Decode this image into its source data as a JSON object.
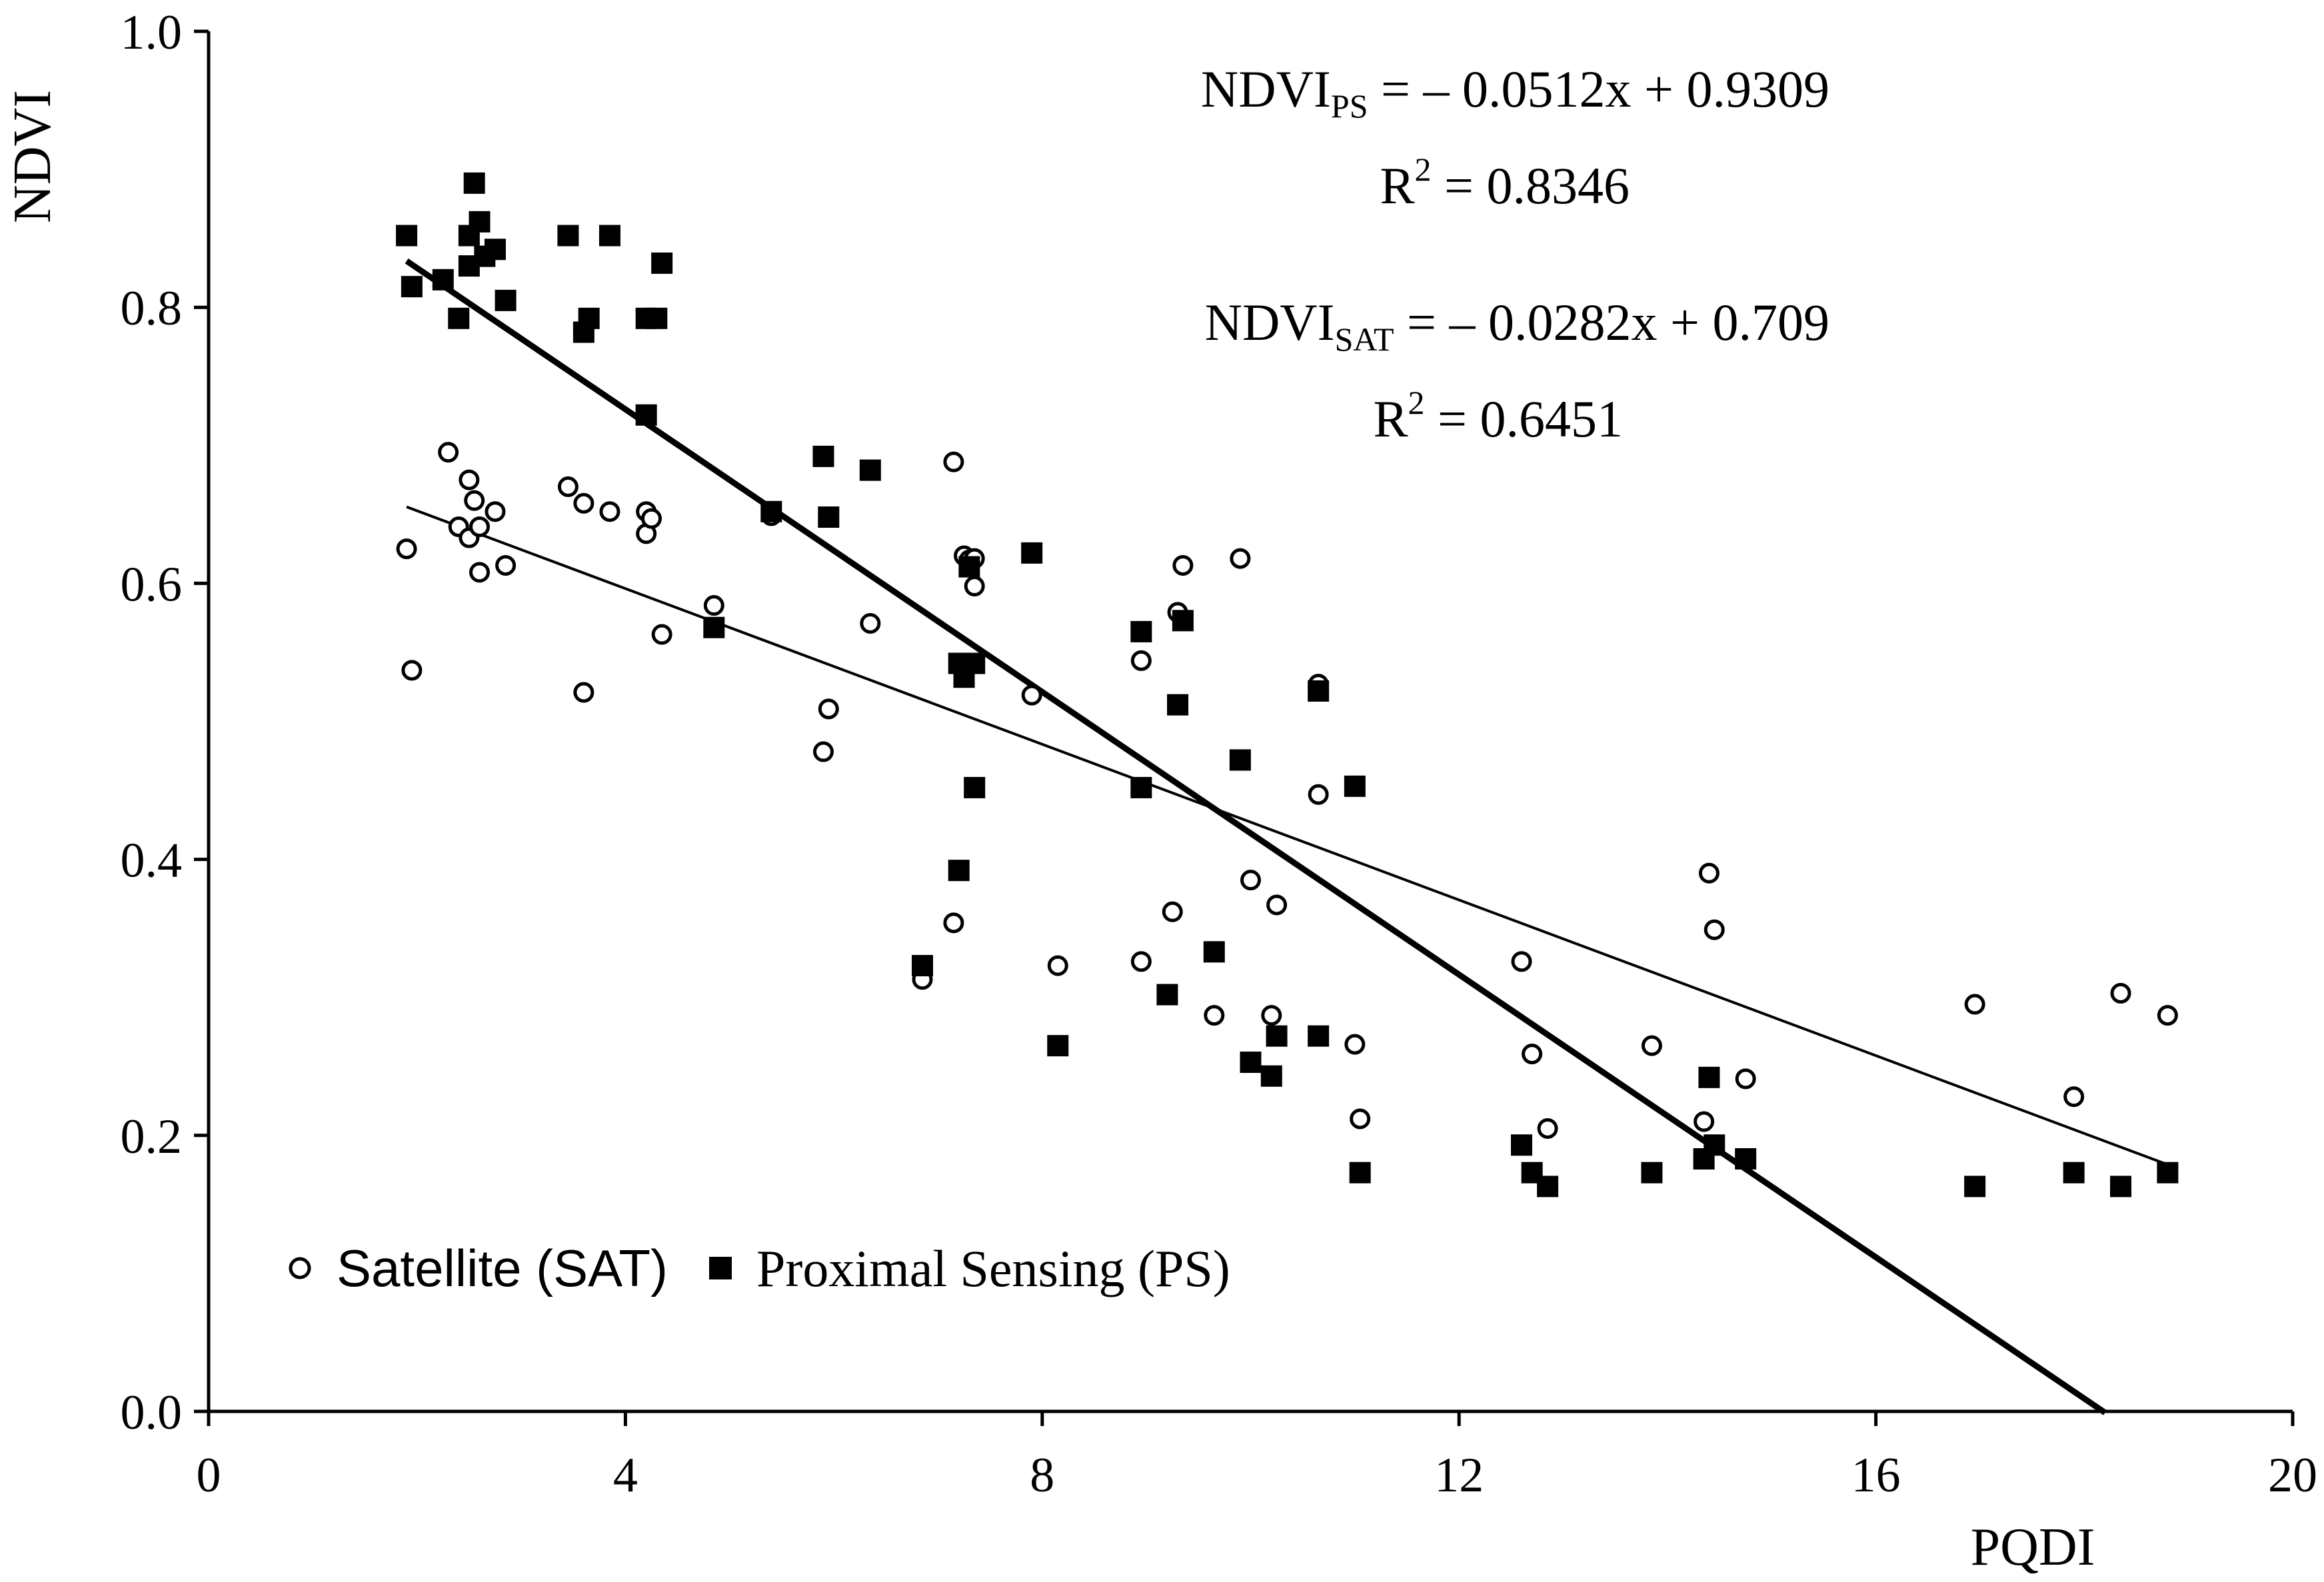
{
  "chart_data": {
    "type": "scatter",
    "title": "",
    "xlabel": "PQDI",
    "ylabel": "NDVI",
    "xlim": [
      0,
      20
    ],
    "ylim": [
      0.0,
      1.0
    ],
    "x_ticks": [
      "0",
      "4",
      "8",
      "12",
      "16",
      "20"
    ],
    "y_ticks": [
      "0.0",
      "0.2",
      "0.4",
      "0.6",
      "0.8",
      "1.0"
    ],
    "grid": false,
    "legend_position": "bottom-left",
    "series": [
      {
        "name": "Satellite (SAT)",
        "marker": "open-circle",
        "points": [
          [
            1.9,
            0.625
          ],
          [
            1.95,
            0.537
          ],
          [
            2.3,
            0.695
          ],
          [
            2.4,
            0.641
          ],
          [
            2.5,
            0.675
          ],
          [
            2.5,
            0.633
          ],
          [
            2.55,
            0.66
          ],
          [
            2.6,
            0.641
          ],
          [
            2.6,
            0.608
          ],
          [
            2.75,
            0.652
          ],
          [
            2.85,
            0.613
          ],
          [
            3.45,
            0.67
          ],
          [
            3.6,
            0.658
          ],
          [
            3.6,
            0.521
          ],
          [
            3.85,
            0.652
          ],
          [
            4.2,
            0.652
          ],
          [
            4.2,
            0.636
          ],
          [
            4.25,
            0.647
          ],
          [
            4.35,
            0.563
          ],
          [
            4.85,
            0.584
          ],
          [
            5.4,
            0.649
          ],
          [
            5.9,
            0.478
          ],
          [
            5.95,
            0.509
          ],
          [
            6.35,
            0.571
          ],
          [
            6.85,
            0.313
          ],
          [
            7.15,
            0.688
          ],
          [
            7.15,
            0.354
          ],
          [
            7.25,
            0.62
          ],
          [
            7.3,
            0.617
          ],
          [
            7.35,
            0.618
          ],
          [
            7.35,
            0.598
          ],
          [
            7.9,
            0.519
          ],
          [
            8.15,
            0.323
          ],
          [
            8.95,
            0.326
          ],
          [
            8.95,
            0.544
          ],
          [
            9.25,
            0.362
          ],
          [
            9.3,
            0.579
          ],
          [
            9.35,
            0.613
          ],
          [
            9.65,
            0.287
          ],
          [
            9.9,
            0.618
          ],
          [
            10.0,
            0.385
          ],
          [
            10.2,
            0.287
          ],
          [
            10.25,
            0.367
          ],
          [
            10.65,
            0.527
          ],
          [
            10.65,
            0.447
          ],
          [
            11.0,
            0.266
          ],
          [
            11.05,
            0.212
          ],
          [
            12.6,
            0.326
          ],
          [
            12.7,
            0.259
          ],
          [
            12.85,
            0.205
          ],
          [
            13.85,
            0.265
          ],
          [
            14.35,
            0.21
          ],
          [
            14.4,
            0.39
          ],
          [
            14.45,
            0.349
          ],
          [
            14.75,
            0.241
          ],
          [
            16.95,
            0.295
          ],
          [
            17.9,
            0.228
          ],
          [
            18.35,
            0.303
          ],
          [
            18.8,
            0.287
          ]
        ]
      },
      {
        "name": "Proximal Sensing (PS)",
        "marker": "filled-square",
        "points": [
          [
            1.9,
            0.852
          ],
          [
            1.95,
            0.815
          ],
          [
            2.25,
            0.82
          ],
          [
            2.4,
            0.792
          ],
          [
            2.5,
            0.852
          ],
          [
            2.5,
            0.83
          ],
          [
            2.55,
            0.89
          ],
          [
            2.6,
            0.862
          ],
          [
            2.65,
            0.837
          ],
          [
            2.75,
            0.842
          ],
          [
            2.85,
            0.805
          ],
          [
            3.45,
            0.852
          ],
          [
            3.6,
            0.782
          ],
          [
            3.65,
            0.792
          ],
          [
            3.85,
            0.852
          ],
          [
            4.2,
            0.792
          ],
          [
            4.3,
            0.792
          ],
          [
            4.2,
            0.722
          ],
          [
            4.35,
            0.832
          ],
          [
            4.85,
            0.568
          ],
          [
            5.4,
            0.652
          ],
          [
            5.9,
            0.692
          ],
          [
            5.95,
            0.648
          ],
          [
            6.35,
            0.682
          ],
          [
            6.85,
            0.323
          ],
          [
            7.2,
            0.542
          ],
          [
            7.2,
            0.392
          ],
          [
            7.25,
            0.532
          ],
          [
            7.3,
            0.612
          ],
          [
            7.35,
            0.542
          ],
          [
            7.35,
            0.452
          ],
          [
            7.9,
            0.622
          ],
          [
            8.15,
            0.265
          ],
          [
            8.95,
            0.452
          ],
          [
            8.95,
            0.565
          ],
          [
            9.2,
            0.302
          ],
          [
            9.3,
            0.512
          ],
          [
            9.35,
            0.573
          ],
          [
            9.65,
            0.333
          ],
          [
            9.9,
            0.472
          ],
          [
            10.0,
            0.253
          ],
          [
            10.2,
            0.243
          ],
          [
            10.25,
            0.272
          ],
          [
            10.65,
            0.522
          ],
          [
            10.65,
            0.272
          ],
          [
            11.0,
            0.453
          ],
          [
            11.05,
            0.173
          ],
          [
            12.6,
            0.193
          ],
          [
            12.7,
            0.173
          ],
          [
            12.85,
            0.163
          ],
          [
            13.85,
            0.173
          ],
          [
            14.35,
            0.183
          ],
          [
            14.4,
            0.242
          ],
          [
            14.45,
            0.193
          ],
          [
            14.75,
            0.183
          ],
          [
            16.95,
            0.163
          ],
          [
            17.9,
            0.173
          ],
          [
            18.35,
            0.163
          ],
          [
            18.8,
            0.173
          ]
        ]
      }
    ],
    "trendlines": [
      {
        "series": "Proximal Sensing (PS)",
        "slope": -0.0512,
        "intercept": 0.9309,
        "x_range": [
          1.9,
          18.2
        ],
        "weight": "thick"
      },
      {
        "series": "Satellite (SAT)",
        "slope": -0.0282,
        "intercept": 0.709,
        "x_range": [
          1.9,
          18.8
        ],
        "weight": "thin"
      }
    ],
    "annotations": {
      "ps_equation": {
        "base": "NDVI",
        "sub": "PS",
        "rhs": " = – 0.0512x + 0.9309"
      },
      "ps_r2": {
        "base": "R",
        "sup": "2",
        "rhs": " = 0.8346"
      },
      "sat_equation": {
        "base": "NDVI",
        "sub": "SAT",
        "rhs": " = – 0.0282x + 0.709"
      },
      "sat_r2": {
        "base": "R",
        "sup": "2",
        "rhs": " = 0.6451"
      }
    },
    "colors": {
      "ink": "#000000",
      "background": "#ffffff"
    }
  }
}
